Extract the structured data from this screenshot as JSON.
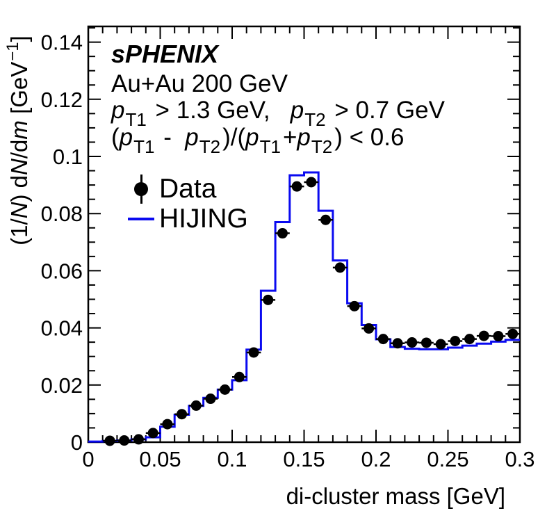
{
  "figure": {
    "background": "#ffffff"
  },
  "chart_data": {
    "type": "bar",
    "subtype": "step-histogram-with-scatter-points",
    "title": "",
    "xlabel": "di-cluster mass [GeV]",
    "ylabel": "(1/N) dN/dm [GeV⁻¹]",
    "ylabel_segments": [
      {
        "t": "(1/"
      },
      {
        "t": "N",
        "i": true
      },
      {
        "t": ") d"
      },
      {
        "t": "N",
        "i": true
      },
      {
        "t": "/d"
      },
      {
        "t": "m",
        "i": true
      },
      {
        "t": " [GeV"
      },
      {
        "t": "−1",
        "sup": true
      },
      {
        "t": "]"
      }
    ],
    "xlim": [
      0,
      0.3
    ],
    "ylim": [
      0,
      0.1455
    ],
    "grid": false,
    "legend_position": "top-left-inside",
    "x_major_ticks": [
      0,
      0.05,
      0.1,
      0.15,
      0.2,
      0.25,
      0.3
    ],
    "x_tick_labels": [
      "0",
      "0.05",
      "0.1",
      "0.15",
      "0.2",
      "0.25",
      "0.3"
    ],
    "x_minor_tick_step": 0.01,
    "y_major_ticks": [
      0,
      0.02,
      0.04,
      0.06,
      0.08,
      0.1,
      0.12,
      0.14
    ],
    "y_tick_labels": [
      "0",
      "0.02",
      "0.04",
      "0.06",
      "0.08",
      "0.1",
      "0.12",
      "0.14"
    ],
    "y_minor_tick_step": 0.005,
    "bin_width": 0.01,
    "colors": {
      "data": "#000000",
      "hijing": "#0a0af0",
      "frame": "#000000"
    },
    "annotations": [
      {
        "name": "experiment",
        "segments": [
          {
            "t": "sPHENIX"
          }
        ]
      },
      {
        "name": "collision-system",
        "segments": [
          {
            "t": "Au+Au 200 GeV"
          }
        ]
      },
      {
        "name": "pt-cuts",
        "segments": [
          {
            "t": "p",
            "i": true
          },
          {
            "t": "T1",
            "sub": true
          },
          {
            "t": " > 1.3 GeV,   "
          },
          {
            "t": "p",
            "i": true
          },
          {
            "t": "T2",
            "sub": true
          },
          {
            "t": " > 0.7 GeV"
          }
        ]
      },
      {
        "name": "asymmetry-cut",
        "segments": [
          {
            "t": "("
          },
          {
            "t": "p",
            "i": true
          },
          {
            "t": "T1",
            "sub": true
          },
          {
            "t": " -  "
          },
          {
            "t": "p",
            "i": true
          },
          {
            "t": "T2",
            "sub": true
          },
          {
            "t": ")/("
          },
          {
            "t": "p",
            "i": true
          },
          {
            "t": "T1",
            "sub": true
          },
          {
            "t": "+"
          },
          {
            "t": "p",
            "i": true
          },
          {
            "t": "T2",
            "sub": true
          },
          {
            "t": ") < 0.6"
          }
        ]
      }
    ],
    "legend": [
      {
        "label": "Data",
        "marker": "filled-circle-with-error-bar",
        "color": "#000000"
      },
      {
        "label": "HIJING",
        "marker": "line",
        "color": "#0a0af0"
      }
    ],
    "series": [
      {
        "name": "Data",
        "type": "scatter",
        "marker": "filled-circle",
        "color": "#000000",
        "x_err": 0.005,
        "y_err": 0.0013,
        "x": [
          0.015,
          0.025,
          0.035,
          0.045,
          0.055,
          0.065,
          0.075,
          0.085,
          0.095,
          0.105,
          0.115,
          0.125,
          0.135,
          0.145,
          0.155,
          0.165,
          0.175,
          0.185,
          0.195,
          0.205,
          0.215,
          0.225,
          0.235,
          0.245,
          0.255,
          0.265,
          0.275,
          0.285,
          0.295
        ],
        "y": [
          0.0005,
          0.0006,
          0.001,
          0.0032,
          0.0063,
          0.0098,
          0.0128,
          0.0152,
          0.0184,
          0.0228,
          0.0314,
          0.0498,
          0.0731,
          0.0895,
          0.091,
          0.0778,
          0.0611,
          0.0476,
          0.0398,
          0.0361,
          0.0346,
          0.0349,
          0.0348,
          0.0343,
          0.0354,
          0.0361,
          0.0372,
          0.0371,
          0.0379
        ]
      },
      {
        "name": "HIJING",
        "type": "step",
        "color": "#0a0af0",
        "bin_centers": [
          0.005,
          0.015,
          0.025,
          0.035,
          0.045,
          0.055,
          0.065,
          0.075,
          0.085,
          0.095,
          0.105,
          0.115,
          0.125,
          0.135,
          0.145,
          0.155,
          0.165,
          0.175,
          0.185,
          0.195,
          0.205,
          0.215,
          0.225,
          0.235,
          0.245,
          0.255,
          0.265,
          0.275,
          0.285,
          0.295
        ],
        "values": [
          0.0002,
          0.0004,
          0.0006,
          0.001,
          0.0017,
          0.0054,
          0.0096,
          0.0127,
          0.0155,
          0.0184,
          0.0217,
          0.0324,
          0.053,
          0.077,
          0.0934,
          0.0944,
          0.081,
          0.0636,
          0.0486,
          0.041,
          0.036,
          0.0333,
          0.0327,
          0.0325,
          0.0325,
          0.0331,
          0.0338,
          0.0345,
          0.0352,
          0.0358
        ]
      }
    ]
  }
}
